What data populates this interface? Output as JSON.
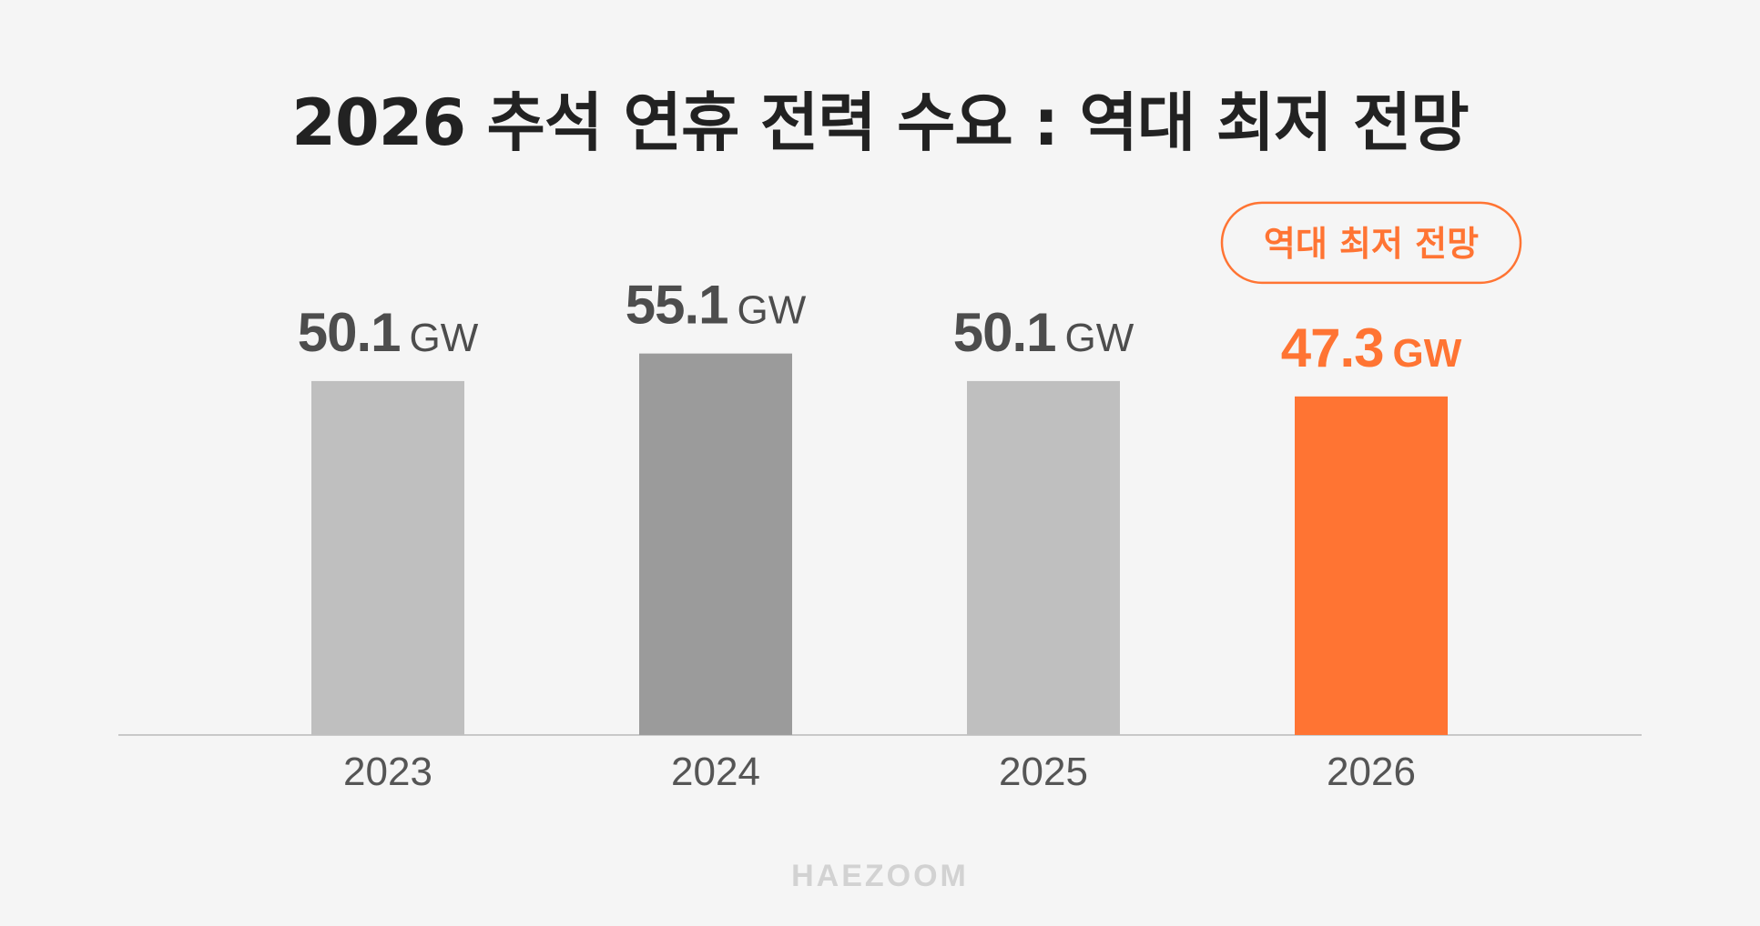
{
  "title": "2026 추석 연휴 전력 수요 : 역대 최저 전망",
  "watermark": "HAEZOOM",
  "chart_data": {
    "type": "bar",
    "categories": [
      "2023",
      "2024",
      "2025",
      "2026"
    ],
    "values": [
      50.1,
      55.1,
      50.1,
      47.3
    ],
    "value_labels": [
      "50.1",
      "55.1",
      "50.1",
      "47.3"
    ],
    "unit": "GW",
    "colors": [
      "#bfbfbf",
      "#9b9b9b",
      "#bfbfbf",
      "#ff7433"
    ],
    "label_colors": [
      "#4d4d4d",
      "#4d4d4d",
      "#4d4d4d",
      "#ff7433"
    ],
    "highlight_index": 3,
    "annotation": "역대 최저 전망",
    "annotation_color": "#ff7433",
    "axis_color": "#c8c8c8",
    "xtick_color": "#555555",
    "grid": false,
    "legend": "none"
  }
}
